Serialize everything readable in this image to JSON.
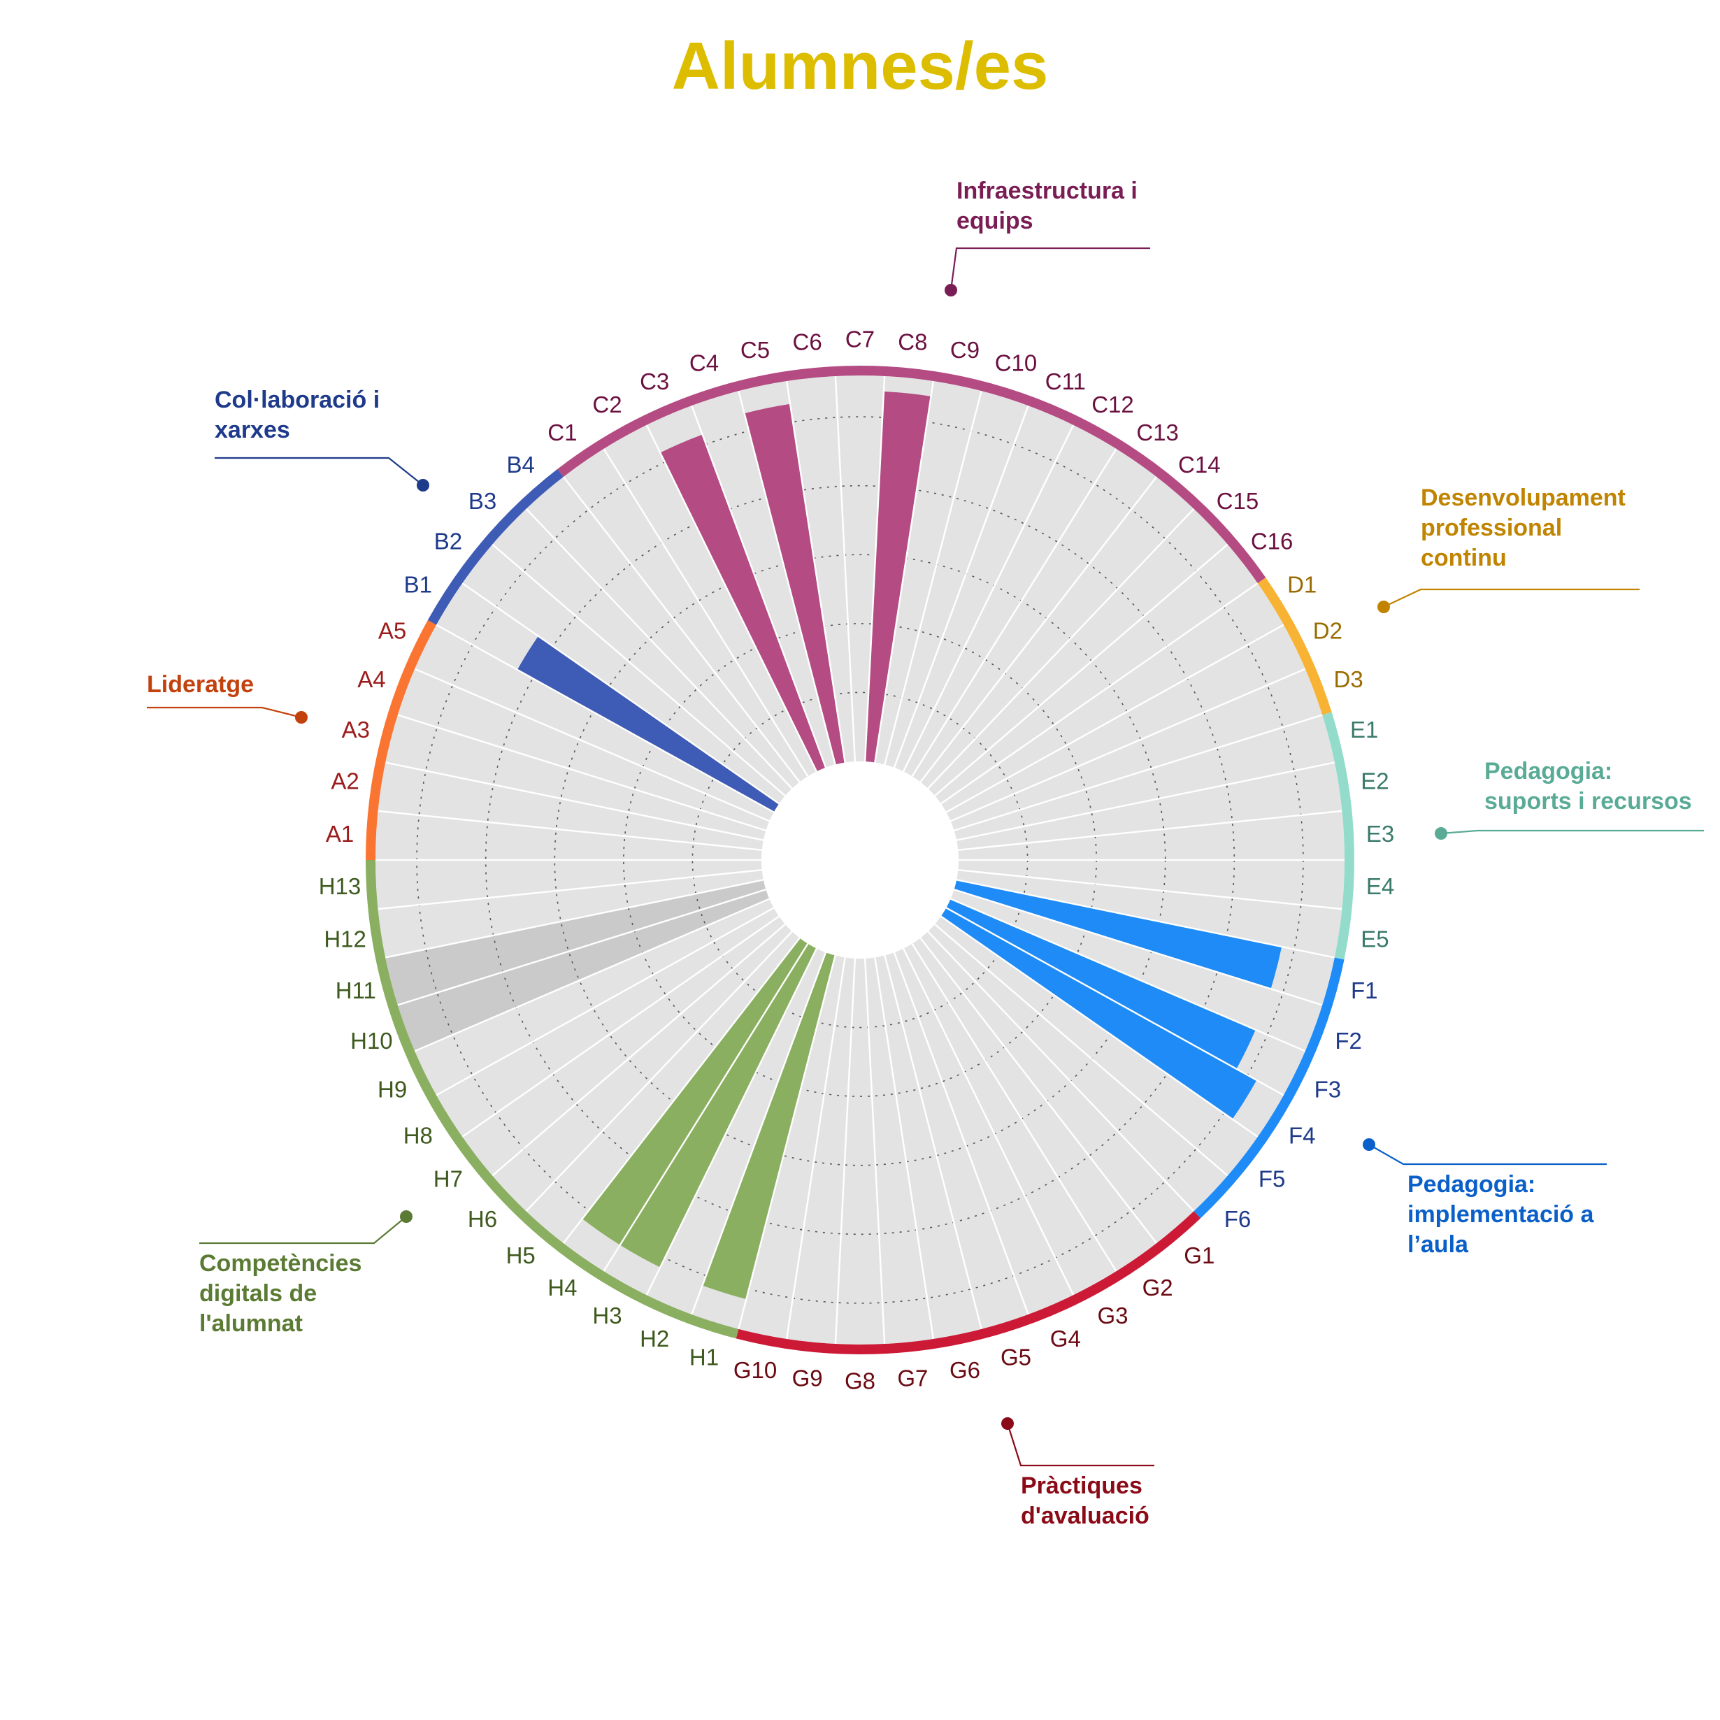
{
  "title": "Alumnes/es",
  "chart_data": {
    "type": "radial-bar",
    "title": "Alumnes/es",
    "scale_max": 5,
    "grid": "dotted rings",
    "background_bar_colors": {
      "default": "#e3e3e3",
      "H10": "#cacaca",
      "H11": "#cacaca"
    },
    "categories": [
      {
        "key": "A",
        "name": "Lideratge",
        "color": "#fb7532",
        "text_color": "#c2410c",
        "label_color": "#9b1c1c",
        "items": [
          "A1",
          "A2",
          "A3",
          "A4",
          "A5"
        ],
        "values": [
          0,
          0,
          0,
          0,
          0
        ]
      },
      {
        "key": "B",
        "name": "Col·laboració i xarxes",
        "color": "#3e5bb5",
        "text_color": "#1e3a8a",
        "label_color": "#1e3a8a",
        "items": [
          "B1",
          "B2",
          "B3",
          "B4"
        ],
        "values": [
          3.8,
          0,
          0,
          0
        ]
      },
      {
        "key": "C",
        "name": "Infraestructura i equips",
        "color": "#b44b82",
        "text_color": "#7a1d55",
        "label_color": "#6b1140",
        "items": [
          "C1",
          "C2",
          "C3",
          "C4",
          "C5",
          "C6",
          "C7",
          "C8",
          "C9",
          "C10",
          "C11",
          "C12",
          "C13",
          "C14",
          "C15",
          "C16"
        ],
        "values": [
          0,
          0,
          4.6,
          0,
          4.7,
          0,
          0,
          4.8,
          0,
          0,
          0,
          0,
          0,
          0,
          0,
          0
        ]
      },
      {
        "key": "D",
        "name": "Desenvolupament professional continu",
        "color": "#f8b334",
        "text_color": "#c08400",
        "label_color": "#9a6b00",
        "items": [
          "D1",
          "D2",
          "D3"
        ],
        "values": [
          0,
          0,
          0
        ]
      },
      {
        "key": "E",
        "name": "Pedagogia: suports i recursos",
        "color": "#93dccb",
        "text_color": "#5aab95",
        "label_color": "#3a7a6b",
        "items": [
          "E1",
          "E2",
          "E3",
          "E4",
          "E5"
        ],
        "values": [
          0,
          0,
          0,
          0,
          0
        ]
      },
      {
        "key": "F",
        "name": "Pedagogia: implementació a l’aula",
        "color": "#1e8bf7",
        "text_color": "#0a5fc8",
        "label_color": "#1e3a8a",
        "items": [
          "F1",
          "F2",
          "F3",
          "F4",
          "F5",
          "F6"
        ],
        "values": [
          4.3,
          0,
          4.3,
          4.6,
          0,
          0
        ]
      },
      {
        "key": "G",
        "name": "Pràctiques d'avaluació",
        "color": "#cc1a36",
        "text_color": "#8b0a17",
        "label_color": "#6b0a12",
        "items": [
          "G1",
          "G2",
          "G3",
          "G4",
          "G5",
          "G6",
          "G7",
          "G8",
          "G9",
          "G10"
        ],
        "values": [
          0,
          0,
          0,
          0,
          0,
          0,
          0,
          0,
          0,
          0
        ]
      },
      {
        "key": "H",
        "name": "Competències digitals de l'alumnat",
        "color": "#8aaf60",
        "text_color": "#5b7b34",
        "label_color": "#3e5a1e",
        "items": [
          "H1",
          "H2",
          "H3",
          "H4",
          "H5",
          "H6",
          "H7",
          "H8",
          "H9",
          "H10",
          "H11",
          "H12",
          "H13"
        ],
        "values": [
          4.6,
          0,
          4.6,
          4.6,
          0,
          0,
          0,
          0,
          0,
          0,
          0,
          0,
          0
        ]
      }
    ],
    "category_labels": [
      {
        "key": "B",
        "lines": [
          "Col·laboració i",
          "xarxes"
        ]
      },
      {
        "key": "A",
        "lines": [
          "Lideratge"
        ]
      },
      {
        "key": "C",
        "lines": [
          "Infraestructura i",
          "equips"
        ]
      },
      {
        "key": "D",
        "lines": [
          "Desenvolupament",
          "professional",
          "continu"
        ]
      },
      {
        "key": "E",
        "lines": [
          "Pedagogia:",
          "suports i recursos"
        ]
      },
      {
        "key": "F",
        "lines": [
          "Pedagogia:",
          "implementació a",
          "l’aula"
        ]
      },
      {
        "key": "G",
        "lines": [
          "Pràctiques",
          "d'avaluació"
        ]
      },
      {
        "key": "H",
        "lines": [
          "Competències",
          "digitals de",
          "l'alumnat"
        ]
      }
    ]
  }
}
